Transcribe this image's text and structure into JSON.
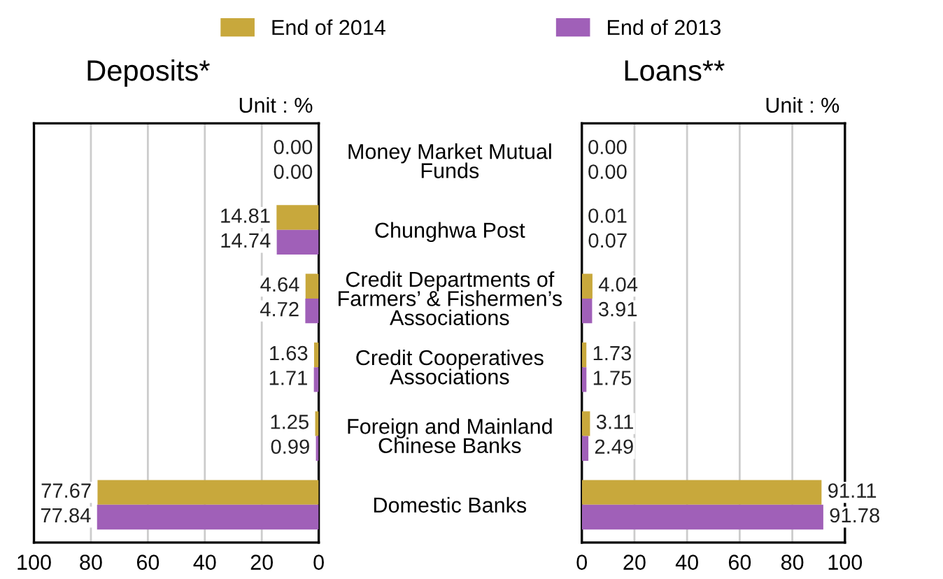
{
  "chart_data": [
    {
      "type": "bar",
      "orientation": "horizontal",
      "title": "Deposits*",
      "annotations": [
        "Unit : %"
      ],
      "categories": [
        null,
        null,
        null,
        null,
        null,
        null
      ],
      "series": [
        {
          "name": "End of 2014",
          "color": "#c8a83c",
          "values": [
            0.0,
            14.81,
            4.64,
            1.63,
            1.25,
            77.67
          ],
          "value_labels": [
            "0.00",
            "14.81",
            "4.64",
            "1.63",
            "1.25",
            "77.67"
          ]
        },
        {
          "name": "End of 2013",
          "color": "#a060b8",
          "values": [
            0.0,
            14.74,
            4.72,
            1.71,
            0.99,
            77.84
          ],
          "value_labels": [
            "0.00",
            "14.74",
            "4.72",
            "1.71",
            "0.99",
            "77.84"
          ]
        }
      ],
      "xlim": [
        100,
        0
      ],
      "xticks": [
        100,
        80,
        60,
        40,
        20,
        0
      ],
      "grid": "x",
      "tick_labels": "x",
      "legend": "top"
    },
    {
      "type": "bar",
      "orientation": "horizontal",
      "title": "Loans**",
      "annotations": [
        "Unit : %"
      ],
      "categories": [
        "Money Market Mutual\nFunds",
        "Chunghwa Post",
        "Credit Departments of\nFarmers’ & Fishermen’s\nAssociations",
        "Credit Cooperatives\nAssociations",
        "Foreign and Mainland\nChinese Banks",
        "Domestic Banks"
      ],
      "series": [
        {
          "name": "End of 2014",
          "color": "#c8a83c",
          "values": [
            0.0,
            0.01,
            4.04,
            1.73,
            3.11,
            91.11
          ],
          "value_labels": [
            "0.00",
            "0.01",
            "4.04",
            "1.73",
            "3.11",
            "91.11"
          ]
        },
        {
          "name": "End of 2013",
          "color": "#a060b8",
          "values": [
            0.0,
            0.07,
            3.91,
            1.75,
            2.49,
            91.78
          ],
          "value_labels": [
            "0.00",
            "0.07",
            "3.91",
            "1.75",
            "2.49",
            "91.78"
          ]
        }
      ],
      "xlim": [
        0,
        100
      ],
      "xticks": [
        0,
        20,
        40,
        60,
        80,
        100
      ],
      "grid": "x",
      "legend": "top"
    }
  ]
}
